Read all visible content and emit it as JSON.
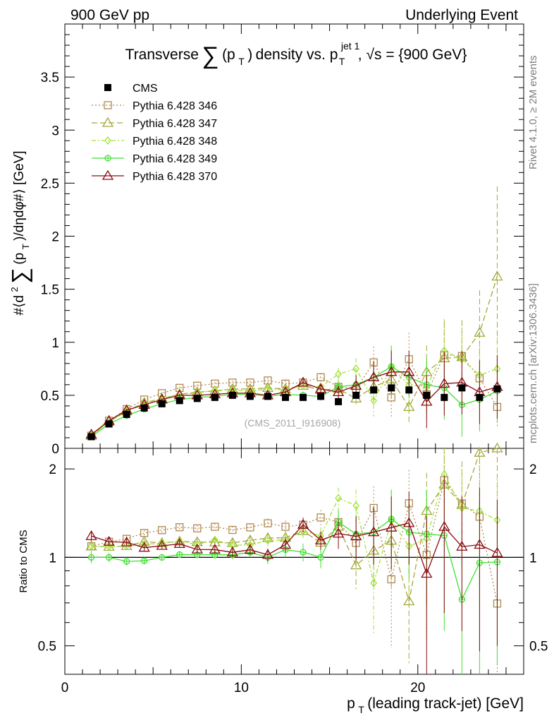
{
  "header": {
    "left": "900 GeV pp",
    "right": "Underlying Event"
  },
  "side_labels": {
    "rivet": "Rivet 4.1.0, ≥ 2M events",
    "mcplots": "mcplots.cern.ch [arXiv:1306.3436]"
  },
  "colors": {
    "cms": "#000000",
    "p346": "#b08850",
    "p347": "#a4a83a",
    "p348": "#a2e03a",
    "p349": "#40e030",
    "p370": "#8b0a14"
  },
  "chart_data": [
    {
      "type": "line",
      "title_parts": {
        "pre": "Transverse",
        "sum": "∑",
        "p": "(p",
        "T": "T",
        "close": ")",
        "mid": "density vs. p",
        "jet": "jet 1",
        "Tsub": "T",
        "post": ", √s = {900 GeV}"
      },
      "ylabel_parts": {
        "pre": "#⟨d",
        "sq": "2",
        "sum": "∑",
        "p": "(p",
        "T": "T",
        "post": ")/dηdφ#⟩ [GeV]"
      },
      "watermark": "(CMS_2011_I916908)",
      "xlim": [
        0,
        26
      ],
      "ylim": [
        0,
        4.0
      ],
      "yticks": [
        0,
        0.5,
        1,
        1.5,
        2,
        2.5,
        3,
        3.5
      ],
      "ytick_labels": [
        "0",
        "0.5",
        "1",
        "1.5",
        "2",
        "2.5",
        "3",
        "3.5"
      ],
      "x": [
        1.5,
        2.5,
        3.5,
        4.5,
        5.5,
        6.5,
        7.5,
        8.5,
        9.5,
        10.5,
        11.5,
        12.5,
        13.5,
        14.5,
        15.5,
        16.5,
        17.5,
        18.5,
        19.5,
        20.5,
        21.5,
        22.5,
        23.5,
        24.5
      ],
      "series": [
        {
          "key": "cms",
          "name": "CMS",
          "marker": "square-filled",
          "values": [
            0.11,
            0.23,
            0.32,
            0.38,
            0.42,
            0.45,
            0.47,
            0.48,
            0.5,
            0.49,
            0.49,
            0.48,
            0.48,
            0.49,
            0.44,
            0.5,
            0.55,
            0.57,
            0.55,
            0.5,
            0.48,
            0.57,
            0.48,
            0.56
          ]
        },
        {
          "key": "p346",
          "name": "Pythia 6.428 346",
          "marker": "square-open",
          "dash": "2,3",
          "values": [
            0.12,
            0.26,
            0.37,
            0.46,
            0.52,
            0.57,
            0.59,
            0.61,
            0.62,
            0.62,
            0.64,
            0.61,
            0.62,
            0.67,
            0.58,
            0.56,
            0.81,
            0.48,
            0.84,
            0.51,
            0.88,
            0.87,
            0.66,
            0.39
          ],
          "errors": [
            0.005,
            0.008,
            0.01,
            0.01,
            0.01,
            0.012,
            0.014,
            0.016,
            0.018,
            0.02,
            0.025,
            0.03,
            0.035,
            0.04,
            0.05,
            0.1,
            0.15,
            0.2,
            0.25,
            0.25,
            0.3,
            0.3,
            0.35,
            0.2
          ]
        },
        {
          "key": "p347",
          "name": "Pythia 6.428 347",
          "marker": "triangle-open",
          "dash": "8,4",
          "values": [
            0.12,
            0.25,
            0.35,
            0.43,
            0.47,
            0.51,
            0.53,
            0.54,
            0.56,
            0.56,
            0.57,
            0.56,
            0.59,
            0.55,
            0.56,
            0.47,
            0.58,
            0.65,
            0.39,
            0.72,
            0.85,
            0.86,
            1.09,
            1.62
          ],
          "errors": [
            0.005,
            0.008,
            0.01,
            0.01,
            0.01,
            0.012,
            0.014,
            0.016,
            0.02,
            0.02,
            0.025,
            0.03,
            0.035,
            0.04,
            0.05,
            0.08,
            0.15,
            0.2,
            0.15,
            0.25,
            0.35,
            0.35,
            0.4,
            0.85
          ]
        },
        {
          "key": "p348",
          "name": "Pythia 6.428 348",
          "marker": "diamond-open",
          "dash": "6,3,2,3",
          "values": [
            0.12,
            0.25,
            0.35,
            0.42,
            0.47,
            0.51,
            0.52,
            0.55,
            0.55,
            0.54,
            0.56,
            0.55,
            0.59,
            0.58,
            0.7,
            0.75,
            0.45,
            0.76,
            0.6,
            0.58,
            0.92,
            0.84,
            0.69,
            0.75
          ],
          "errors": [
            0.005,
            0.008,
            0.01,
            0.01,
            0.01,
            0.012,
            0.014,
            0.016,
            0.018,
            0.02,
            0.025,
            0.03,
            0.035,
            0.04,
            0.06,
            0.1,
            0.15,
            0.2,
            0.2,
            0.25,
            0.3,
            0.3,
            0.3,
            0.3
          ]
        },
        {
          "key": "p349",
          "name": "Pythia 6.428 349",
          "marker": "circle-cross",
          "dash": "",
          "values": [
            0.11,
            0.23,
            0.31,
            0.37,
            0.42,
            0.46,
            0.48,
            0.49,
            0.51,
            0.51,
            0.49,
            0.51,
            0.5,
            0.49,
            0.58,
            0.6,
            0.67,
            0.77,
            0.67,
            0.6,
            0.57,
            0.41,
            0.46,
            0.54
          ],
          "errors": [
            0.005,
            0.008,
            0.01,
            0.01,
            0.01,
            0.012,
            0.014,
            0.016,
            0.018,
            0.02,
            0.025,
            0.03,
            0.035,
            0.04,
            0.06,
            0.1,
            0.15,
            0.2,
            0.2,
            0.25,
            0.3,
            0.3,
            0.3,
            0.3
          ]
        },
        {
          "key": "p370",
          "name": "Pythia 6.428 370",
          "marker": "triangle-open",
          "dash": "",
          "values": [
            0.13,
            0.26,
            0.36,
            0.41,
            0.46,
            0.5,
            0.5,
            0.51,
            0.52,
            0.52,
            0.5,
            0.53,
            0.62,
            0.56,
            0.53,
            0.59,
            0.67,
            0.72,
            0.72,
            0.44,
            0.61,
            0.62,
            0.53,
            0.58
          ],
          "errors": [
            0.005,
            0.008,
            0.01,
            0.01,
            0.01,
            0.012,
            0.014,
            0.016,
            0.018,
            0.02,
            0.025,
            0.03,
            0.035,
            0.04,
            0.06,
            0.1,
            0.15,
            0.2,
            0.2,
            0.25,
            0.3,
            0.3,
            0.3,
            0.3
          ]
        }
      ]
    },
    {
      "type": "line",
      "ylabel": "Ratio to CMS",
      "xlabel_parts": {
        "p": "p",
        "T": "T",
        "post": " (leading track-jet) [GeV]"
      },
      "xlim": [
        0,
        26
      ],
      "ylim": [
        0.4,
        2.35
      ],
      "xticks": [
        0,
        10,
        20
      ],
      "xtick_labels": [
        "0",
        "10",
        "20"
      ],
      "yticks": [
        0.5,
        1,
        2
      ],
      "ytick_labels": [
        "0.5",
        "1",
        "2"
      ],
      "reference": 1.0
    }
  ]
}
